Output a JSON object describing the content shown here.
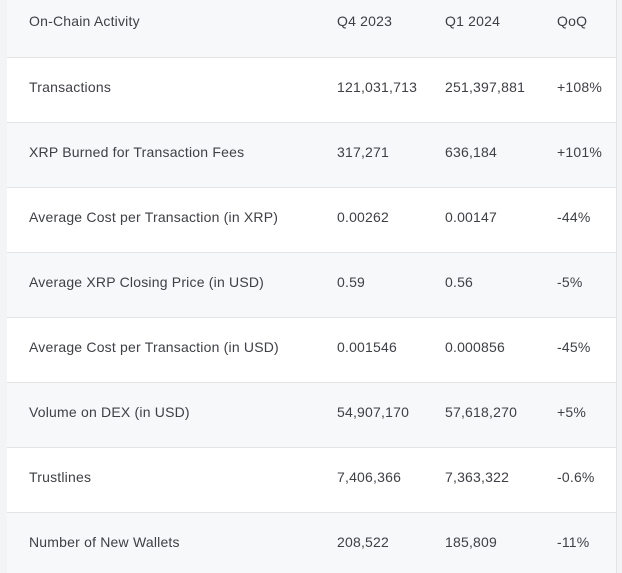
{
  "chart_data": {
    "type": "table",
    "title": "On-Chain Activity",
    "columns": [
      "On-Chain Activity",
      "Q4 2023",
      "Q1 2024",
      "QoQ"
    ],
    "rows": [
      [
        "Transactions",
        "121,031,713",
        "251,397,881",
        "+108%"
      ],
      [
        "XRP Burned for Transaction Fees",
        "317,271",
        "636,184",
        "+101%"
      ],
      [
        "Average Cost per Transaction (in XRP)",
        "0.00262",
        "0.00147",
        "-44%"
      ],
      [
        "Average XRP Closing Price (in USD)",
        "0.59",
        "0.56",
        "-5%"
      ],
      [
        "Average Cost per Transaction (in USD)",
        "0.001546",
        "0.000856",
        "-45%"
      ],
      [
        "Volume on DEX (in USD)",
        "54,907,170",
        "57,618,270",
        "+5%"
      ],
      [
        "Trustlines",
        "7,406,366",
        "7,363,322",
        "-0.6%"
      ],
      [
        "Number of New Wallets",
        "208,522",
        "185,809",
        "-11%"
      ]
    ],
    "layout": {
      "striped": true,
      "grid": "horizontal-dividers",
      "value_alignment": "left"
    }
  },
  "colors": {
    "text": "#3e4045",
    "row_stripe": "#f7f8f9",
    "row_white": "#ffffff",
    "divider": "#e3e4e6",
    "page_background": "#f3f4f5"
  }
}
